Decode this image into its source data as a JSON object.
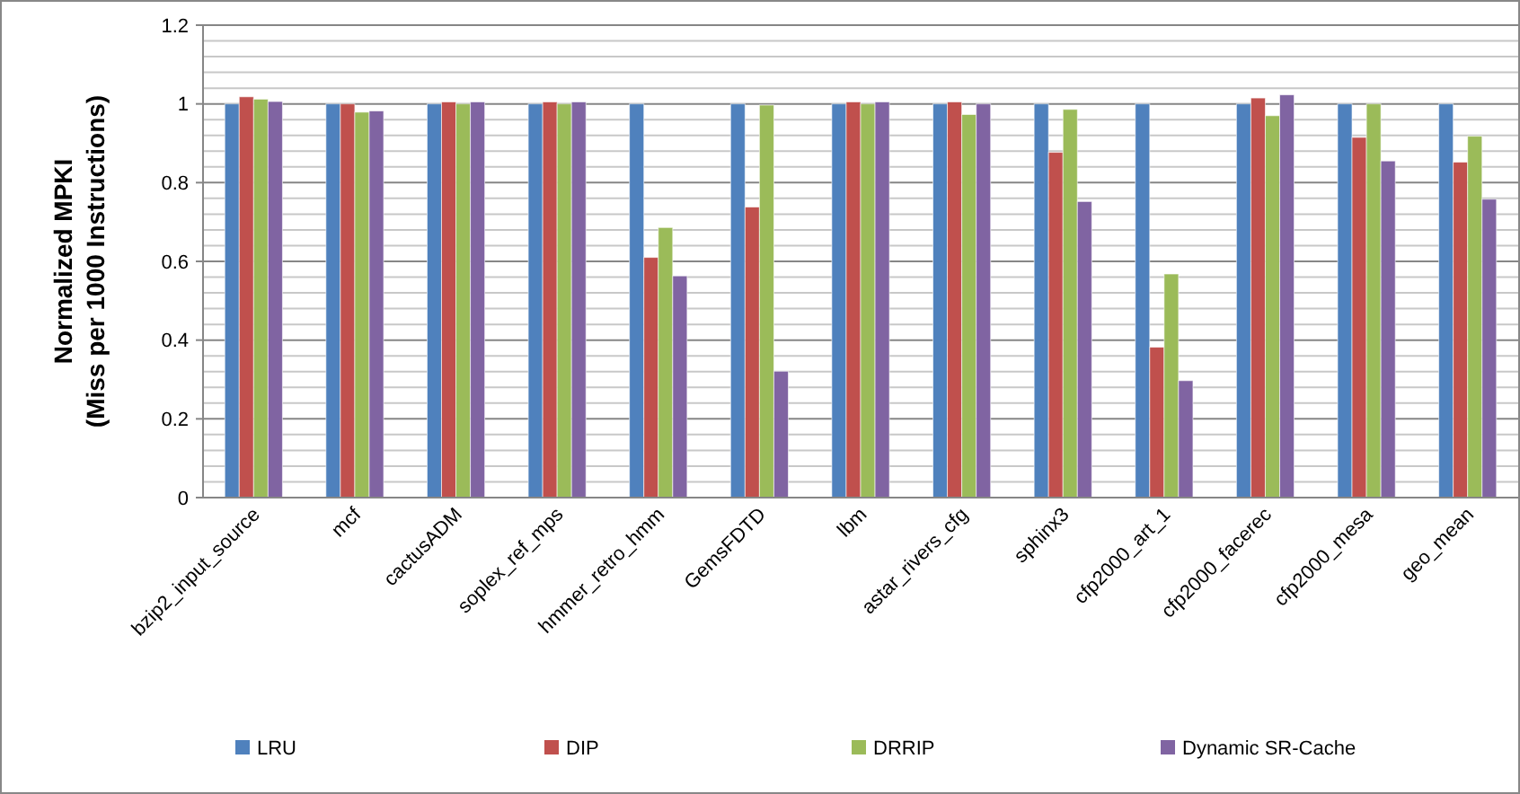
{
  "chart_data": {
    "type": "bar",
    "ylabel": "Normalized MPKI\n(Miss per 1000 Instructions)",
    "categories": [
      "bzip2_input_source",
      "mcf",
      "cactusADM",
      "soplex_ref_mps",
      "hmmer_retro_hmm",
      "GemsFDTD",
      "lbm",
      "astar_rivers_cfg",
      "sphinx3",
      "cfp2000_art_1",
      "cfp2000_facerec",
      "cfp2000_mesa",
      "geo_mean"
    ],
    "series": [
      {
        "name": "LRU",
        "color": "#4f81bd",
        "values": [
          1,
          1,
          1,
          1,
          1,
          1,
          1,
          1,
          1,
          1,
          1,
          1,
          1
        ]
      },
      {
        "name": "DIP",
        "color": "#c0504d",
        "values": [
          1.018,
          1.0,
          1.005,
          1.005,
          0.61,
          0.738,
          1.005,
          1.005,
          0.877,
          0.382,
          1.015,
          0.915,
          0.852
        ]
      },
      {
        "name": "DRRIP",
        "color": "#9bbb59",
        "values": [
          1.012,
          0.979,
          1.0,
          1.0,
          0.686,
          0.997,
          1.0,
          0.973,
          0.986,
          0.568,
          0.97,
          1.0,
          0.918
        ]
      },
      {
        "name": "Dynamic SR-Cache",
        "color": "#8064a2",
        "values": [
          1.006,
          0.982,
          1.005,
          1.005,
          0.563,
          0.321,
          1.005,
          1.0,
          0.752,
          0.297,
          1.023,
          0.855,
          0.758
        ]
      }
    ],
    "ylim": [
      0,
      1.2
    ],
    "yticks": [
      0,
      {
        "value": 0.04,
        "label": null
      },
      {
        "value": 0.08,
        "label": null
      },
      {
        "value": 0.12,
        "label": null
      },
      {
        "value": 0.16,
        "label": null
      },
      0.2,
      {
        "value": 0.24,
        "label": null
      },
      {
        "value": 0.28,
        "label": null
      },
      {
        "value": 0.32,
        "label": null
      },
      {
        "value": 0.36,
        "label": null
      },
      0.4,
      {
        "value": 0.44,
        "label": null
      },
      {
        "value": 0.48,
        "label": null
      },
      {
        "value": 0.52,
        "label": null
      },
      {
        "value": 0.56,
        "label": null
      },
      0.6,
      {
        "value": 0.64,
        "label": null
      },
      {
        "value": 0.68,
        "label": null
      },
      {
        "value": 0.72,
        "label": null
      },
      {
        "value": 0.76,
        "label": null
      },
      0.8,
      {
        "value": 0.84,
        "label": null
      },
      {
        "value": 0.88,
        "label": null
      },
      {
        "value": 0.92,
        "label": null
      },
      {
        "value": 0.96,
        "label": null
      },
      1,
      {
        "value": 1.04,
        "label": null
      },
      {
        "value": 1.08,
        "label": null
      },
      {
        "value": 1.12,
        "label": null
      },
      {
        "value": 1.16,
        "label": null
      },
      1.2
    ],
    "grid": true,
    "legend": "bottom"
  }
}
